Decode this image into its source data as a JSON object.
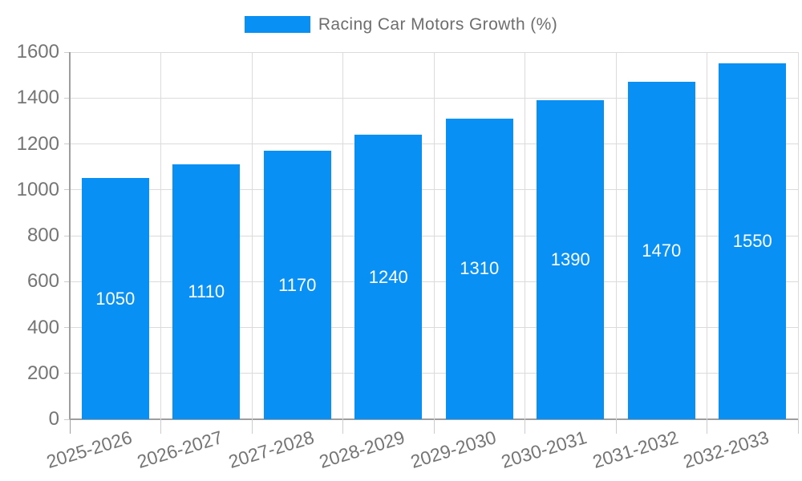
{
  "chart_data": {
    "type": "bar",
    "title": "Racing Car Motors Growth (%)",
    "categories": [
      "2025-2026",
      "2026-2027",
      "2027-2028",
      "2028-2029",
      "2029-2030",
      "2030-2031",
      "2031-2032",
      "2032-2033"
    ],
    "values": [
      1050,
      1110,
      1170,
      1240,
      1310,
      1390,
      1470,
      1550
    ],
    "xlabel": "",
    "ylabel": "",
    "ylim": [
      0,
      1600
    ],
    "yticks": [
      0,
      200,
      400,
      600,
      800,
      1000,
      1200,
      1400,
      1600
    ],
    "grid": true,
    "legend_position": "top",
    "bar_value_labels_inside": true,
    "colors": {
      "bar": "#0890F5",
      "bar_value_text": "#FFFFFF",
      "axis_text": "#757575",
      "legend_text": "#6E6E6E",
      "gridline": "#DBDBDB",
      "axis_line": "#9E9E9E",
      "tick": "#CCCCCC",
      "background": "#FFFFFF"
    }
  }
}
